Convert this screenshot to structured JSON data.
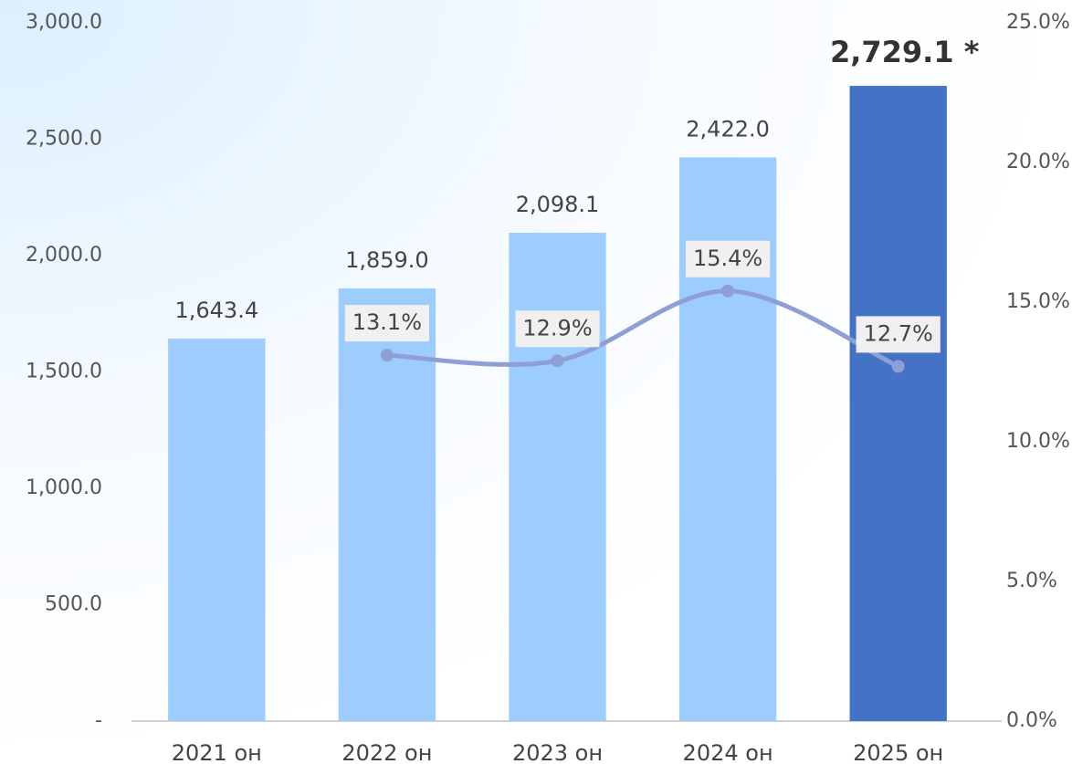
{
  "chart_data": {
    "type": "bar",
    "categories": [
      "2021 он",
      "2022 он",
      "2023 он",
      "2024 он",
      "2025 он"
    ],
    "series": [
      {
        "type": "bar",
        "colors": [
          "#9dcdfd",
          "#9dcdfd",
          "#9dcdfd",
          "#9dcdfd",
          "#4472c4"
        ],
        "values": [
          1643.4,
          1859.0,
          2098.1,
          2422.0,
          2729.1
        ],
        "value_labels": [
          "1,643.4",
          "1,859.0",
          "2,098.1",
          "2,422.0",
          "2,729.1 *"
        ],
        "bold_labels": [
          false,
          false,
          false,
          false,
          true
        ]
      },
      {
        "type": "line",
        "axis": "y2",
        "color": "#8e9fd6",
        "values": [
          null,
          13.1,
          12.9,
          15.4,
          12.7
        ],
        "value_labels": [
          null,
          "13.1%",
          "12.9%",
          "15.4%",
          "12.7%"
        ]
      }
    ],
    "ylim": [
      0,
      3000
    ],
    "yticks": [
      {
        "value": 0,
        "label": "-"
      },
      {
        "value": 500,
        "label": "500.0"
      },
      {
        "value": 1000,
        "label": "1,000.0"
      },
      {
        "value": 1500,
        "label": "1,500.0"
      },
      {
        "value": 2000,
        "label": "2,000.0"
      },
      {
        "value": 2500,
        "label": "2,500.0"
      },
      {
        "value": 3000,
        "label": "3,000.0"
      }
    ],
    "y2lim": [
      0,
      25
    ],
    "y2ticks": [
      {
        "value": 0,
        "label": "0.0%"
      },
      {
        "value": 5,
        "label": "5.0%"
      },
      {
        "value": 10,
        "label": "10.0%"
      },
      {
        "value": 15,
        "label": "15.0%"
      },
      {
        "value": 20,
        "label": "20.0%"
      },
      {
        "value": 25,
        "label": "25.0%"
      }
    ],
    "grid": false
  }
}
